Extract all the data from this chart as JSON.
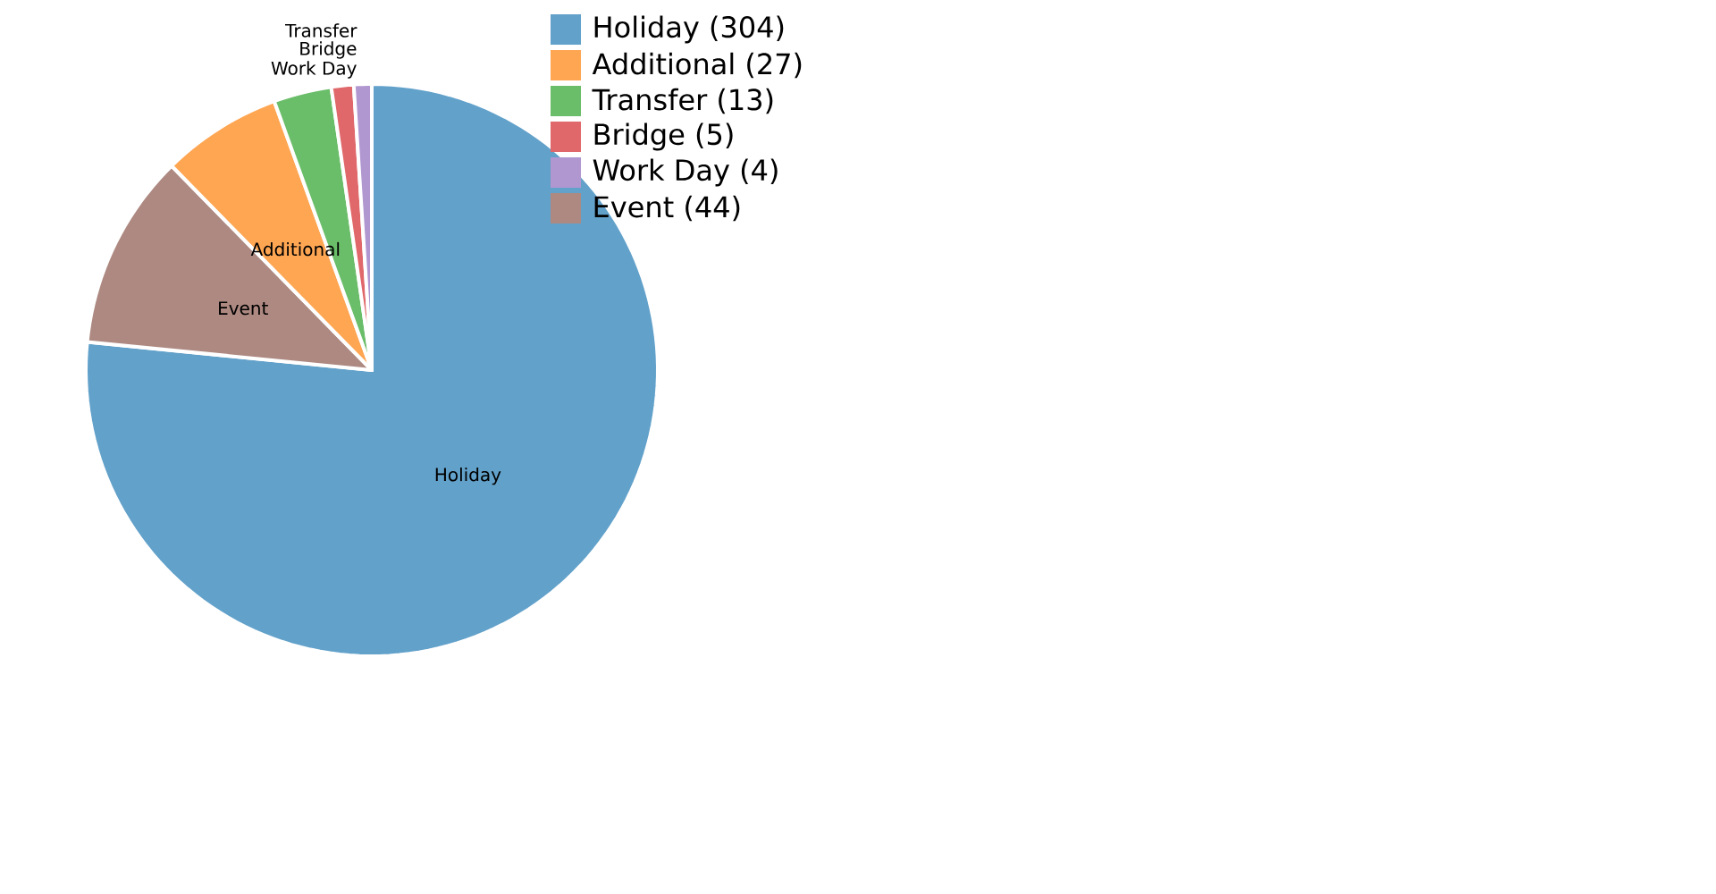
{
  "chart_data": {
    "type": "pie",
    "categories": [
      "Holiday",
      "Additional",
      "Transfer",
      "Bridge",
      "Work Day",
      "Event"
    ],
    "values": [
      304,
      27,
      13,
      5,
      4,
      44
    ],
    "value_labels": [
      "(304)",
      "(27)",
      "(13)",
      "(5)",
      "(4)",
      "(44)"
    ],
    "colors": [
      "#62a1ca",
      "#ffa653",
      "#6abd69",
      "#e0686a",
      "#b197d0",
      "#ad8981"
    ],
    "legend": "top right"
  }
}
